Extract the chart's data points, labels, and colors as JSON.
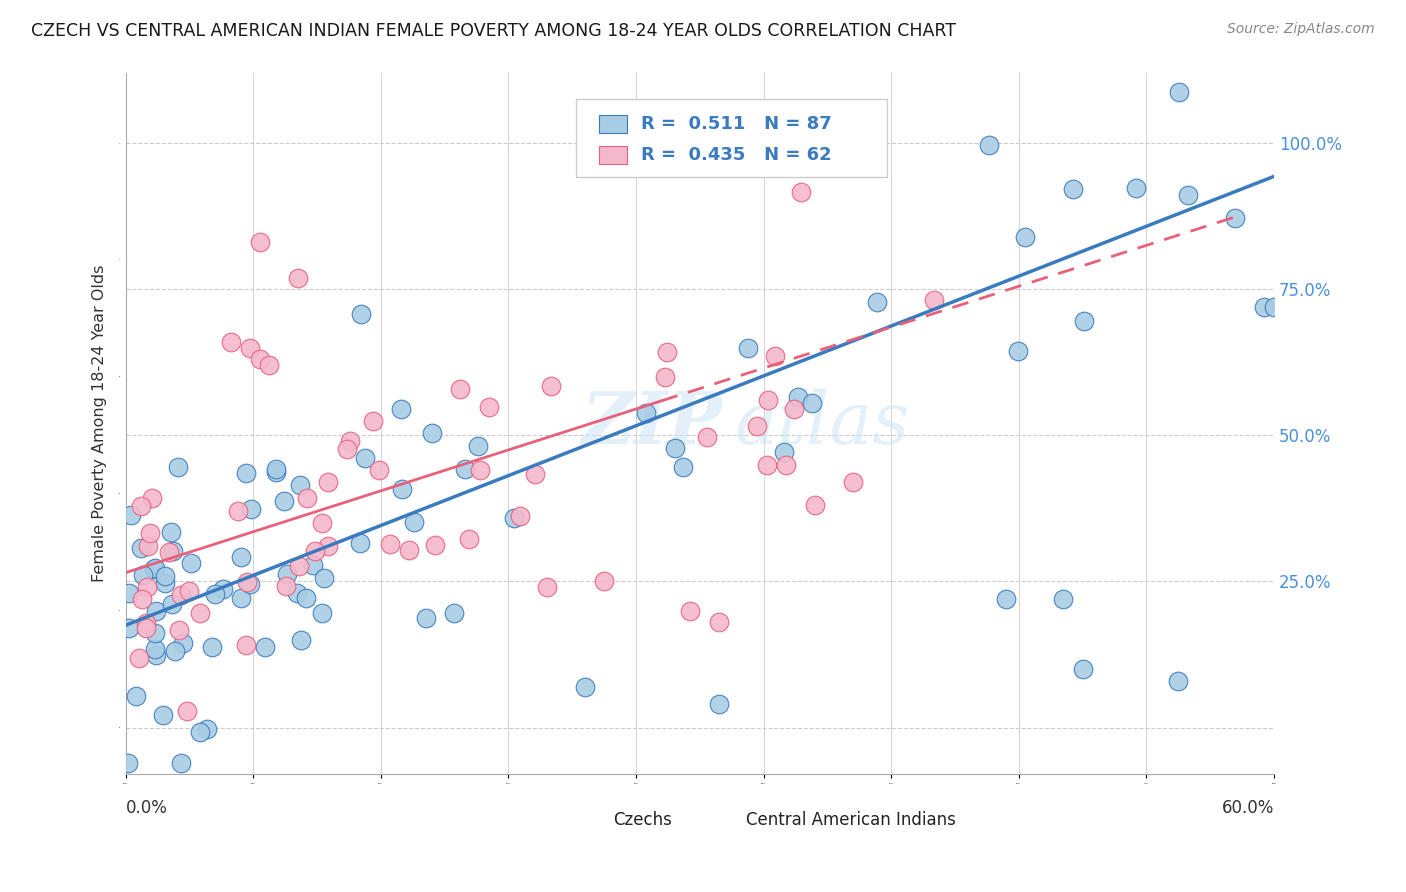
{
  "title": "CZECH VS CENTRAL AMERICAN INDIAN FEMALE POVERTY AMONG 18-24 YEAR OLDS CORRELATION CHART",
  "source": "Source: ZipAtlas.com",
  "ylabel": "Female Poverty Among 18-24 Year Olds",
  "xmin": 0.0,
  "xmax": 0.6,
  "ymin": -0.08,
  "ymax": 1.12,
  "czech_R": 0.511,
  "czech_N": 87,
  "caindian_R": 0.435,
  "caindian_N": 62,
  "legend_label_czech": "Czechs",
  "legend_label_caindian": "Central American Indians",
  "blue_color": "#a8cce4",
  "pink_color": "#f4b8cc",
  "blue_line_color": "#3a7bbf",
  "pink_line_color": "#e8607a",
  "watermark_zip": "ZIP",
  "watermark_atlas": "atlas",
  "background_color": "#ffffff",
  "grid_color": "#cccccc",
  "right_label_color": "#4a90d9",
  "title_color": "#1a1a1a",
  "source_color": "#888888"
}
